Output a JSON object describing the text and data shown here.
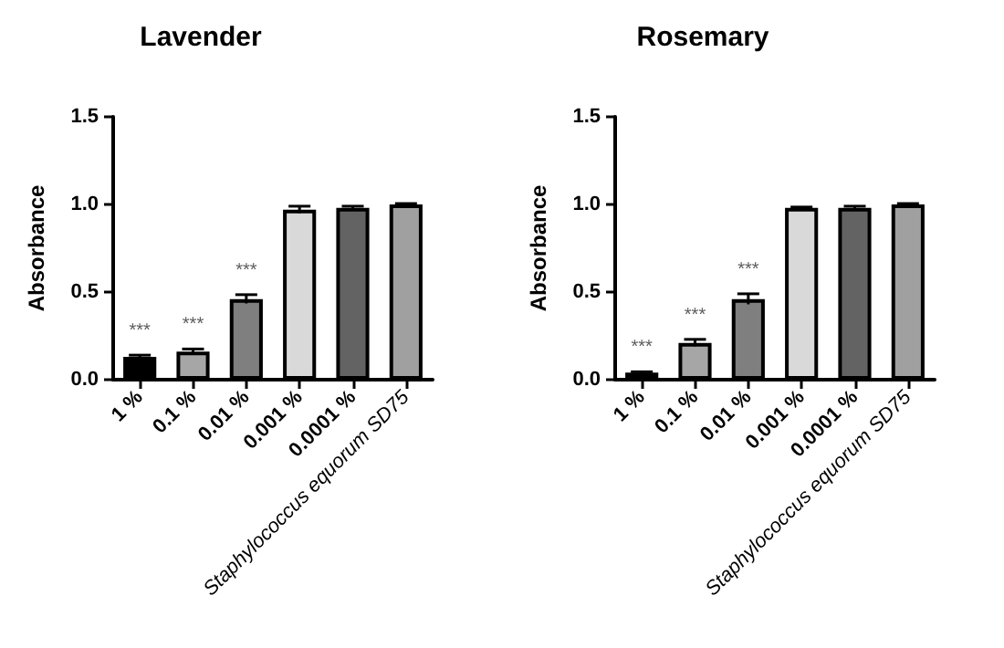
{
  "chart_data": [
    {
      "type": "bar",
      "title": "Lavender",
      "ylabel": "Absorbance",
      "categories": [
        "1 %",
        "0.1 %",
        "0.01 %",
        "0.001 %",
        "0.0001 %",
        "Staphylococcus equorum SD75"
      ],
      "values": [
        0.13,
        0.16,
        0.46,
        0.97,
        0.98,
        1.0
      ],
      "errors": [
        0.01,
        0.015,
        0.025,
        0.02,
        0.01,
        0.005
      ],
      "colors": [
        "#000000",
        "#a6a6a6",
        "#7f7f7f",
        "#d9d9d9",
        "#636363",
        "#a0a0a0"
      ],
      "ylim": [
        0,
        1.5
      ],
      "yticks": [
        {
          "value": 0,
          "label": "0.0"
        },
        {
          "value": 0.5,
          "label": "0.5"
        },
        {
          "value": 1,
          "label": "1.0"
        },
        {
          "value": 1.5,
          "label": "1.5"
        }
      ],
      "grid": false,
      "annotations": [
        "***",
        "***",
        "***"
      ]
    },
    {
      "type": "bar",
      "title": "Rosemary",
      "ylabel": "Absorbance",
      "categories": [
        "1 %",
        "0.1 %",
        "0.01 %",
        "0.001 %",
        "0.0001 %",
        "Staphylococcus equorum SD75"
      ],
      "values": [
        0.04,
        0.21,
        0.46,
        0.98,
        0.98,
        1.0
      ],
      "errors": [
        0.005,
        0.02,
        0.03,
        0.005,
        0.01,
        0.005
      ],
      "colors": [
        "#000000",
        "#a6a6a6",
        "#7f7f7f",
        "#d9d9d9",
        "#636363",
        "#a0a0a0"
      ],
      "ylim": [
        0,
        1.5
      ],
      "yticks": [
        {
          "value": 0,
          "label": "0.0"
        },
        {
          "value": 0.5,
          "label": "0.5"
        },
        {
          "value": 1,
          "label": "1.0"
        },
        {
          "value": 1.5,
          "label": "1.5"
        }
      ],
      "grid": false,
      "annotations": [
        "***",
        "***",
        "***"
      ]
    }
  ]
}
